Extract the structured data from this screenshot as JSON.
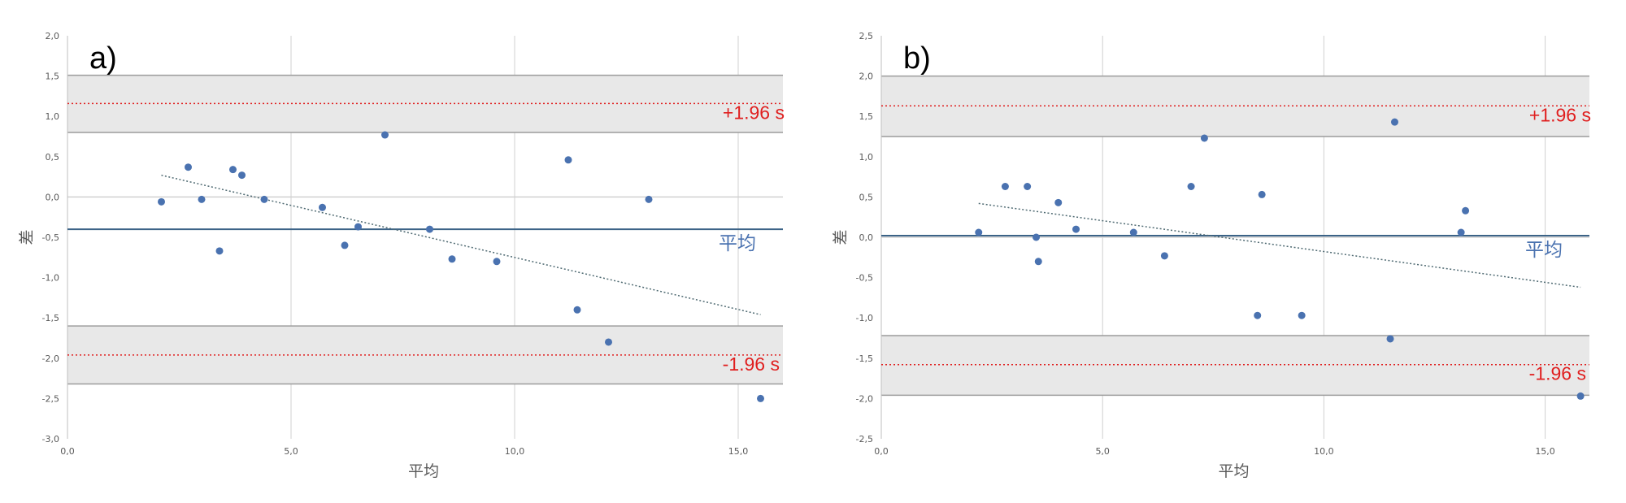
{
  "colors": {
    "point": "#4a72b0",
    "mean_line": "#3b6387",
    "limit_line": "#e01f1f",
    "band_fill": "#e8e8e8",
    "band_border": "#9c9c9c",
    "grid": "#d0d0d0",
    "trend": "#4f6a72",
    "annotation_red": "#e01f1f",
    "annotation_blue": "#4a72b0"
  },
  "chart_data": [
    {
      "type": "scatter",
      "panel_label": "a)",
      "xlabel": "平均",
      "ylabel": "差",
      "xlim": [
        0,
        16
      ],
      "ylim": [
        -3,
        2
      ],
      "x_ticks": [
        0,
        5,
        10,
        15
      ],
      "x_tick_labels": [
        "0,0",
        "5,0",
        "10,0",
        "15,0"
      ],
      "y_ticks": [
        -3,
        -2.5,
        -2,
        -1.5,
        -1,
        -0.5,
        0,
        0.5,
        1,
        1.5,
        2
      ],
      "y_tick_labels": [
        "-3,0",
        "-2,5",
        "-2,0",
        "-1,5",
        "-1,0",
        "-0,5",
        "0,0",
        "0,5",
        "1,0",
        "1,5",
        "2,0"
      ],
      "grid": "vertical",
      "mean": -0.4,
      "upper_loa": 1.16,
      "lower_loa": -1.96,
      "upper_band": [
        0.8,
        1.51
      ],
      "lower_band": [
        -2.32,
        -1.6
      ],
      "upper_label": "+1.96 s",
      "lower_label": "-1.96 s",
      "mean_label": "平均",
      "trend": [
        [
          2.1,
          0.27
        ],
        [
          15.5,
          -1.46
        ]
      ],
      "points": [
        [
          2.1,
          -0.06
        ],
        [
          2.7,
          0.37
        ],
        [
          3.0,
          -0.03
        ],
        [
          3.4,
          -0.67
        ],
        [
          3.7,
          0.34
        ],
        [
          3.9,
          0.27
        ],
        [
          4.4,
          -0.03
        ],
        [
          5.7,
          -0.13
        ],
        [
          6.2,
          -0.6
        ],
        [
          6.5,
          -0.37
        ],
        [
          7.1,
          0.77
        ],
        [
          8.1,
          -0.4
        ],
        [
          8.6,
          -0.77
        ],
        [
          9.6,
          -0.8
        ],
        [
          11.2,
          0.46
        ],
        [
          11.4,
          -1.4
        ],
        [
          12.1,
          -1.8
        ],
        [
          13.0,
          -0.03
        ],
        [
          15.5,
          -2.5
        ]
      ]
    },
    {
      "type": "scatter",
      "panel_label": "b)",
      "xlabel": "平均",
      "ylabel": "差",
      "xlim": [
        0,
        16
      ],
      "ylim": [
        -2.5,
        2.5
      ],
      "x_ticks": [
        0,
        5,
        10,
        15
      ],
      "x_tick_labels": [
        "0,0",
        "5,0",
        "10,0",
        "15,0"
      ],
      "y_ticks": [
        -2.5,
        -2,
        -1.5,
        -1,
        -0.5,
        0,
        0.5,
        1,
        1.5,
        2,
        2.5
      ],
      "y_tick_labels": [
        "-2,5",
        "-2,0",
        "-1,5",
        "-1,0",
        "-0,5",
        "0,0",
        "0,5",
        "1,0",
        "1,5",
        "2,0",
        "2,5"
      ],
      "grid": "vertical",
      "mean": 0.02,
      "upper_loa": 1.63,
      "lower_loa": -1.58,
      "upper_band": [
        1.25,
        2.0
      ],
      "lower_band": [
        -1.96,
        -1.22
      ],
      "upper_label": "+1.96 s",
      "lower_label": "-1.96 s",
      "mean_label": "平均",
      "trend": [
        [
          2.2,
          0.42
        ],
        [
          15.8,
          -0.62
        ]
      ],
      "points": [
        [
          2.2,
          0.06
        ],
        [
          2.8,
          0.63
        ],
        [
          3.3,
          0.63
        ],
        [
          3.5,
          0.0
        ],
        [
          3.55,
          -0.3
        ],
        [
          4.0,
          0.43
        ],
        [
          4.4,
          0.1
        ],
        [
          5.7,
          0.06
        ],
        [
          6.4,
          -0.23
        ],
        [
          7.0,
          0.63
        ],
        [
          7.3,
          1.23
        ],
        [
          8.5,
          -0.97
        ],
        [
          8.6,
          0.53
        ],
        [
          9.5,
          -0.97
        ],
        [
          11.5,
          -1.26
        ],
        [
          11.6,
          1.43
        ],
        [
          13.1,
          0.06
        ],
        [
          13.2,
          0.33
        ],
        [
          15.8,
          -1.97
        ]
      ]
    }
  ]
}
